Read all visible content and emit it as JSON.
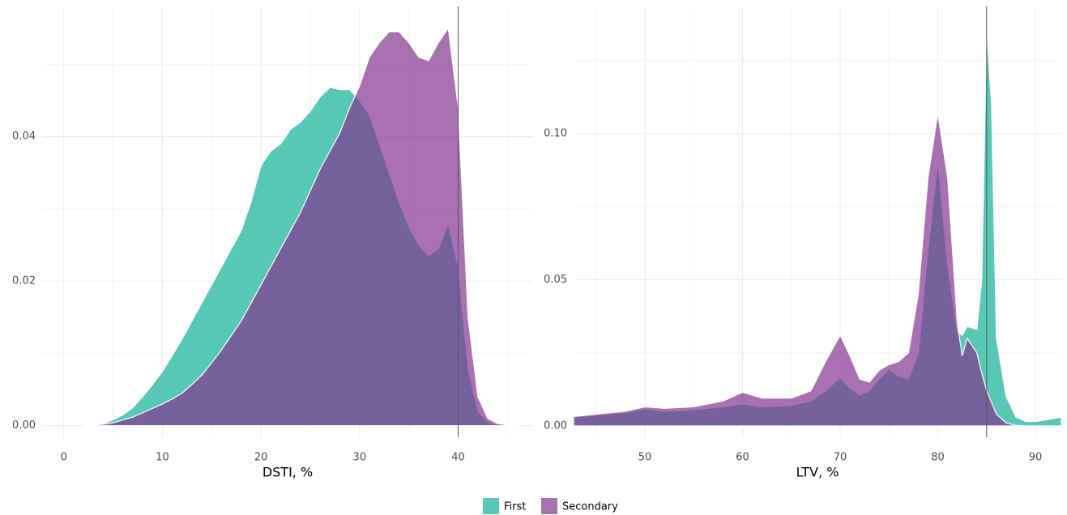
{
  "chart_data": [
    {
      "type": "density",
      "xlabel": "DSTI, %",
      "xlim": [
        -2.2,
        47.6
      ],
      "ylim": [
        -0.0016,
        0.058
      ],
      "xticks": [
        0,
        10,
        20,
        30,
        40
      ],
      "yticks": [
        {
          "value": 0,
          "label": "0.00"
        },
        0.02,
        0.04
      ],
      "grid": true,
      "vline": 40,
      "x": [
        2,
        3,
        4,
        5,
        6,
        7,
        8,
        9,
        10,
        11,
        12,
        13,
        14,
        15,
        16,
        17,
        18,
        19,
        20,
        21,
        22,
        23,
        24,
        25,
        26,
        27,
        28,
        29,
        30,
        31,
        32,
        33,
        34,
        35,
        36,
        37,
        38,
        39,
        40,
        41,
        42,
        43,
        44,
        45,
        46
      ],
      "series": [
        {
          "name": "First",
          "color": "#0eb195",
          "values": [
            0,
            0.0001,
            0.0003,
            0.0008,
            0.0015,
            0.0025,
            0.004,
            0.0057,
            0.0075,
            0.0097,
            0.012,
            0.0145,
            0.017,
            0.0195,
            0.022,
            0.0245,
            0.027,
            0.031,
            0.036,
            0.038,
            0.039,
            0.041,
            0.042,
            0.0435,
            0.0455,
            0.0468,
            0.0465,
            0.0465,
            0.045,
            0.043,
            0.039,
            0.035,
            0.031,
            0.0275,
            0.025,
            0.0235,
            0.0245,
            0.028,
            0.022,
            0.008,
            0.002,
            0.0005,
            0.0001,
            0,
            0
          ]
        },
        {
          "name": "Secondary",
          "color": "#843392",
          "values": [
            0,
            0.0001,
            0.0002,
            0.0004,
            0.0008,
            0.0012,
            0.0018,
            0.0024,
            0.003,
            0.0037,
            0.0045,
            0.0057,
            0.007,
            0.0087,
            0.0105,
            0.0125,
            0.0145,
            0.017,
            0.0195,
            0.022,
            0.0245,
            0.027,
            0.0295,
            0.0325,
            0.0355,
            0.038,
            0.0405,
            0.044,
            0.047,
            0.051,
            0.053,
            0.0545,
            0.0545,
            0.053,
            0.051,
            0.0505,
            0.053,
            0.055,
            0.044,
            0.015,
            0.004,
            0.001,
            0.0003,
            0.0001,
            0
          ]
        }
      ]
    },
    {
      "type": "density",
      "xlabel": "LTV, %",
      "xlim": [
        42.7,
        92.65
      ],
      "ylim": [
        -0.0039,
        0.1435
      ],
      "xticks": [
        50,
        60,
        70,
        80,
        90
      ],
      "yticks": [
        {
          "value": 0,
          "label": "0.00"
        },
        0.05,
        {
          "value": 0.1,
          "label": "0.10"
        }
      ],
      "grid": true,
      "vline": 85,
      "x": [
        42.7,
        45,
        48,
        50,
        52,
        55,
        58,
        60,
        62,
        65,
        67,
        68.5,
        70,
        71,
        72,
        73,
        74,
        75,
        76,
        77,
        78,
        79,
        80,
        81,
        82,
        82.5,
        83,
        84,
        84.5,
        85,
        85.5,
        86,
        87,
        88,
        89,
        90,
        91,
        92.65
      ],
      "series": [
        {
          "name": "First",
          "color": "#0eb195",
          "values": [
            0.003,
            0.0037,
            0.0045,
            0.0058,
            0.005,
            0.0055,
            0.0065,
            0.0075,
            0.0065,
            0.007,
            0.0085,
            0.012,
            0.0165,
            0.013,
            0.0105,
            0.012,
            0.016,
            0.0195,
            0.017,
            0.016,
            0.025,
            0.06,
            0.091,
            0.055,
            0.032,
            0.031,
            0.034,
            0.033,
            0.05,
            0.136,
            0.11,
            0.03,
            0.01,
            0.003,
            0.0015,
            0.0015,
            0.002,
            0.003
          ]
        },
        {
          "name": "Secondary",
          "color": "#843392",
          "values": [
            0.0032,
            0.004,
            0.005,
            0.0065,
            0.006,
            0.0065,
            0.0085,
            0.0115,
            0.0095,
            0.0095,
            0.012,
            0.022,
            0.031,
            0.024,
            0.016,
            0.015,
            0.019,
            0.021,
            0.022,
            0.025,
            0.045,
            0.085,
            0.107,
            0.085,
            0.035,
            0.024,
            0.03,
            0.025,
            0.018,
            0.012,
            0.008,
            0.004,
            0.001,
            0.0002,
            0,
            0,
            0,
            0
          ]
        }
      ]
    }
  ]
}
